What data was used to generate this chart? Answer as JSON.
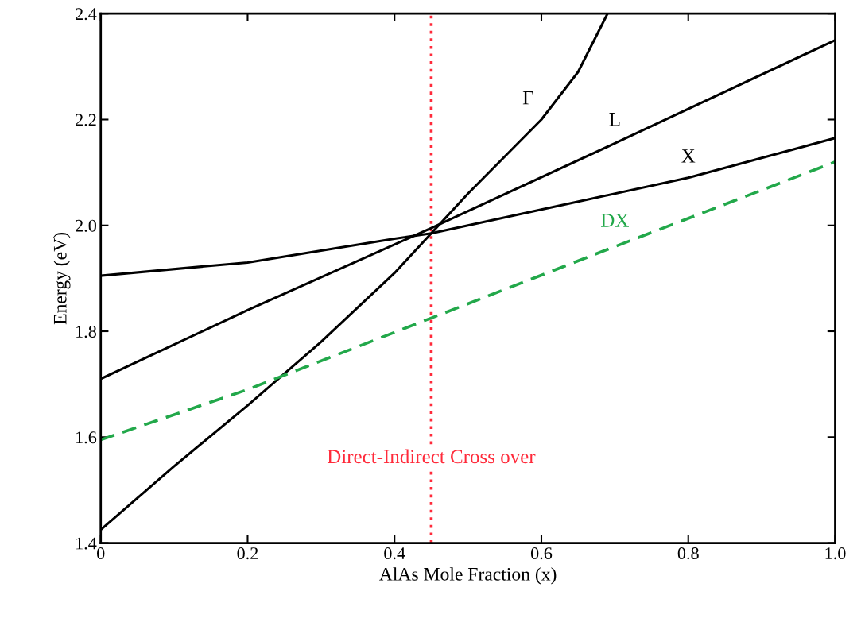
{
  "chart_data": {
    "type": "line",
    "xlabel": "AlAs Mole Fraction (x)",
    "ylabel": "Energy (eV)",
    "xlim": [
      0,
      1.0
    ],
    "ylim": [
      1.4,
      2.4
    ],
    "xticks": [
      0,
      0.2,
      0.4,
      0.6,
      0.8,
      {
        "value": 1.0,
        "label": "1.0"
      }
    ],
    "yticks": [
      1.4,
      1.6,
      1.8,
      {
        "value": 2.0,
        "label": "2.0"
      },
      2.2,
      2.4
    ],
    "grid": false,
    "legend": false,
    "marker": "none",
    "series": [
      {
        "name": "Γ",
        "color": "#000000",
        "line_style": "solid",
        "x": [
          0,
          0.1,
          0.2,
          0.3,
          0.4,
          0.45,
          0.5,
          0.6,
          0.65,
          0.69
        ],
        "values": [
          1.425,
          1.545,
          1.66,
          1.78,
          1.91,
          1.985,
          2.06,
          2.2,
          2.29,
          2.4
        ]
      },
      {
        "name": "L",
        "color": "#000000",
        "line_style": "solid",
        "x": [
          0,
          0.2,
          0.45,
          0.7,
          1.0
        ],
        "values": [
          1.71,
          1.84,
          1.995,
          2.155,
          2.35
        ]
      },
      {
        "name": "X",
        "color": "#000000",
        "line_style": "solid",
        "x": [
          0,
          0.2,
          0.4,
          0.45,
          0.6,
          0.8,
          1.0
        ],
        "values": [
          1.905,
          1.93,
          1.975,
          1.985,
          2.03,
          2.09,
          2.165
        ]
      },
      {
        "name": "DX",
        "color": "#22a84a",
        "line_style": "dashed",
        "x": [
          0,
          0.2,
          0.45,
          0.7,
          1.0
        ],
        "values": [
          1.595,
          1.69,
          1.825,
          1.96,
          2.12
        ]
      }
    ],
    "ref_lines": [
      {
        "axis": "x",
        "value": 0.45,
        "label": "Direct-Indirect Cross over",
        "color": "#ff2a3a",
        "line_style": "dotted"
      }
    ]
  }
}
